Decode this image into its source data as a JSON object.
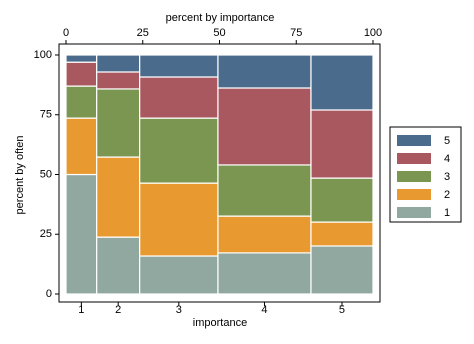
{
  "chart_data": {
    "type": "mosaic",
    "x2_label": "percent by importance",
    "x_label": "importance",
    "y_label": "percent by often",
    "categories": [
      "1",
      "2",
      "3",
      "4",
      "5"
    ],
    "widths": [
      10,
      14,
      25.5,
      30.3,
      20.2
    ],
    "xlim": [
      0,
      100
    ],
    "xticks": [
      0,
      25,
      50,
      75,
      100
    ],
    "ylim": [
      0,
      100
    ],
    "yticks": [
      0,
      25,
      50,
      75,
      100
    ],
    "series": [
      {
        "name": "1",
        "color": "#90a8a0",
        "values": [
          50,
          23.8,
          15.9,
          17.2,
          20.1
        ]
      },
      {
        "name": "2",
        "color": "#e8992f",
        "values": [
          23.6,
          33.5,
          30.5,
          15.4,
          10
        ]
      },
      {
        "name": "3",
        "color": "#7b9650",
        "values": [
          13.4,
          28.5,
          27.2,
          21.4,
          18.4
        ]
      },
      {
        "name": "4",
        "color": "#aa5860",
        "values": [
          10,
          7.1,
          17.2,
          32.2,
          28.5
        ]
      },
      {
        "name": "5",
        "color": "#4a6b8c",
        "values": [
          3,
          7.1,
          9.2,
          13.8,
          23
        ]
      }
    ]
  }
}
